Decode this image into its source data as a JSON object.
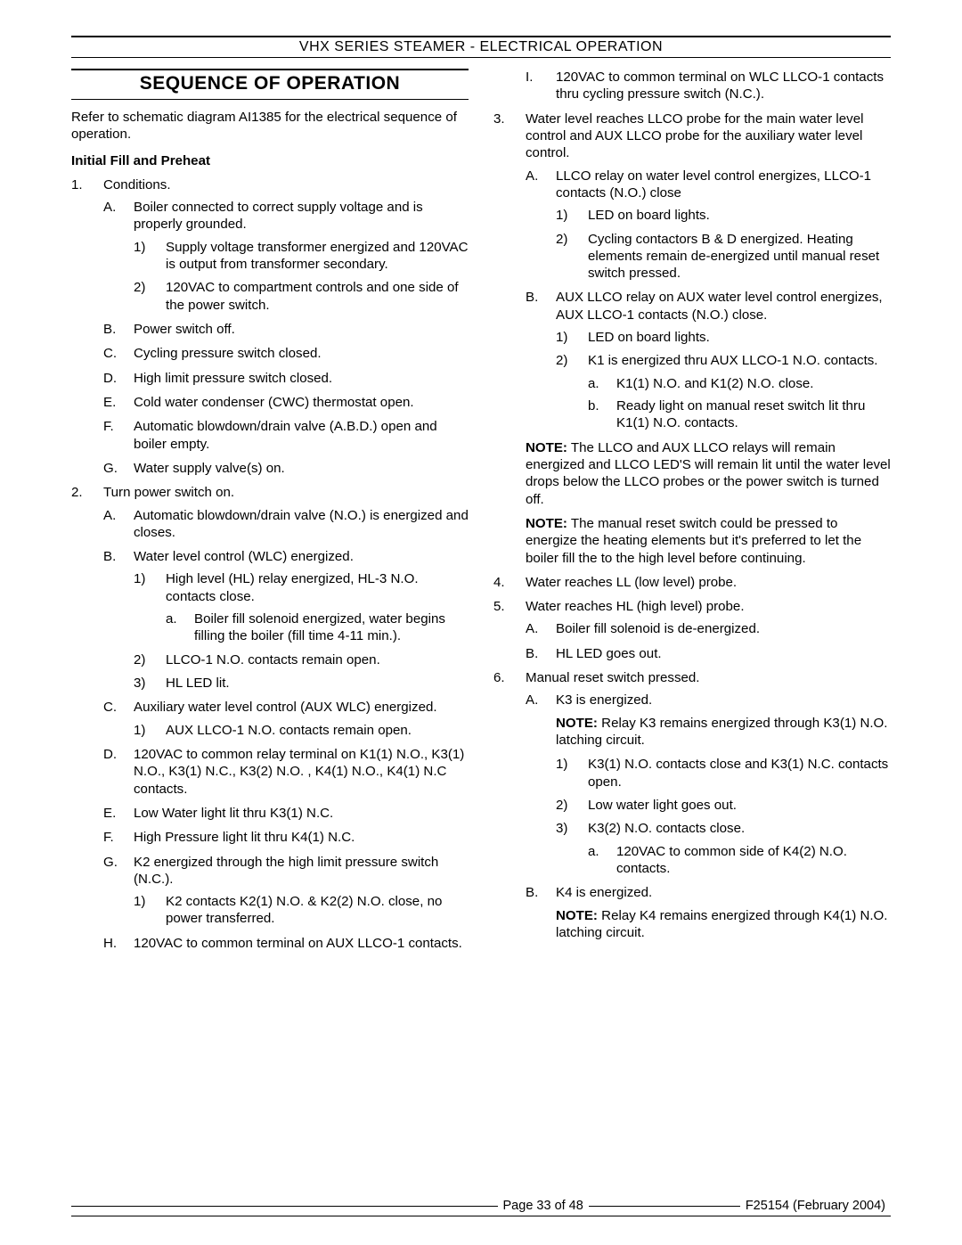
{
  "header": "VHX SERIES STEAMER - ELECTRICAL OPERATION",
  "section_title": "SEQUENCE OF OPERATION",
  "intro": "Refer to schematic diagram AI1385 for the electrical sequence of operation.",
  "subhead": "Initial Fill and Preheat",
  "steps": [
    {
      "n": "1.",
      "t": "Conditions.",
      "sub": [
        {
          "l": "A.",
          "t": "Boiler connected to correct supply voltage and is properly grounded.",
          "sub": [
            {
              "l": "1)",
              "t": "Supply voltage transformer energized and 120VAC is output from transformer secondary."
            },
            {
              "l": "2)",
              "t": "120VAC to compartment controls and one side of the power switch."
            }
          ]
        },
        {
          "l": "B.",
          "t": "Power switch off."
        },
        {
          "l": "C.",
          "t": "Cycling pressure switch closed."
        },
        {
          "l": "D.",
          "t": "High limit pressure switch closed."
        },
        {
          "l": "E.",
          "t": "Cold water condenser (CWC) thermostat open."
        },
        {
          "l": "F.",
          "t": "Automatic blowdown/drain valve (A.B.D.) open and boiler empty."
        },
        {
          "l": "G.",
          "t": "Water supply valve(s) on."
        }
      ]
    },
    {
      "n": "2.",
      "t": "Turn power switch on.",
      "sub": [
        {
          "l": "A.",
          "t": "Automatic blowdown/drain valve (N.O.) is energized and closes."
        },
        {
          "l": "B.",
          "t": "Water level control (WLC) energized.",
          "sub": [
            {
              "l": "1)",
              "t": "High level (HL) relay energized, HL-3 N.O. contacts close.",
              "sub": [
                {
                  "l": "a.",
                  "t": "Boiler fill solenoid energized, water begins filling the boiler (fill time 4-11 min.)."
                }
              ]
            },
            {
              "l": "2)",
              "t": "LLCO-1 N.O. contacts remain open."
            },
            {
              "l": "3)",
              "t": "HL LED lit."
            }
          ]
        },
        {
          "l": "C.",
          "t": "Auxiliary water level control (AUX WLC) energized.",
          "sub": [
            {
              "l": "1)",
              "t": "AUX LLCO-1 N.O. contacts remain open."
            }
          ]
        },
        {
          "l": "D.",
          "t": "120VAC to common relay terminal on K1(1) N.O., K3(1) N.O., K3(1) N.C., K3(2) N.O. , K4(1) N.O., K4(1) N.C contacts."
        },
        {
          "l": "E.",
          "t": "Low Water light lit thru K3(1) N.C."
        },
        {
          "l": "F.",
          "t": "High Pressure light lit thru K4(1) N.C."
        },
        {
          "l": "G.",
          "t": "K2 energized through the high limit pressure switch (N.C.).",
          "sub": [
            {
              "l": "1)",
              "t": "K2 contacts K2(1) N.O. & K2(2) N.O. close, no power transferred."
            }
          ]
        },
        {
          "l": "H.",
          "t": "120VAC to common terminal on AUX LLCO-1 contacts."
        },
        {
          "l": "I.",
          "t": "120VAC to common terminal on WLC LLCO-1 contacts thru cycling pressure switch (N.C.)."
        }
      ]
    },
    {
      "n": "3.",
      "t": "Water level reaches LLCO probe for the main water level control and AUX LLCO probe for the auxiliary water level control.",
      "sub": [
        {
          "l": "A.",
          "t": "LLCO relay on water level control energizes, LLCO-1 contacts (N.O.) close",
          "sub": [
            {
              "l": "1)",
              "t": "LED on board lights."
            },
            {
              "l": "2)",
              "t": "Cycling contactors B & D energized. Heating elements remain de-energized until manual reset switch pressed."
            }
          ]
        },
        {
          "l": "B.",
          "t": "AUX LLCO relay on AUX water level control energizes, AUX LLCO-1 contacts (N.O.) close.",
          "sub": [
            {
              "l": "1)",
              "t": "LED on board lights."
            },
            {
              "l": "2)",
              "t": "K1 is energized thru AUX LLCO-1 N.O. contacts.",
              "sub": [
                {
                  "l": "a.",
                  "t": "K1(1) N.O. and K1(2) N.O. close."
                },
                {
                  "l": "b.",
                  "t": "Ready light on manual reset switch lit thru K1(1) N.O. contacts."
                }
              ]
            }
          ]
        }
      ],
      "notes": [
        "The LLCO and AUX LLCO relays will remain energized and LLCO LED'S will remain lit until the water level drops below the LLCO probes or the power switch is turned off.",
        "The manual reset switch could be pressed to energize the heating elements but it's preferred to let the boiler fill the to the high level before continuing."
      ]
    },
    {
      "n": "4.",
      "t": "Water reaches LL (low level) probe."
    },
    {
      "n": "5.",
      "t": "Water reaches HL (high level) probe.",
      "sub": [
        {
          "l": "A.",
          "t": "Boiler fill solenoid is de-energized."
        },
        {
          "l": "B.",
          "t": "HL LED goes out."
        }
      ]
    },
    {
      "n": "6.",
      "t": "Manual reset switch pressed.",
      "sub": [
        {
          "l": "A.",
          "t": "K3 is energized.",
          "note": "Relay K3 remains energized through K3(1) N.O. latching circuit.",
          "sub": [
            {
              "l": "1)",
              "t": "K3(1) N.O. contacts close and K3(1) N.C. contacts open."
            },
            {
              "l": "2)",
              "t": "Low water light goes out."
            },
            {
              "l": "3)",
              "t": "K3(2) N.O. contacts close.",
              "sub": [
                {
                  "l": "a.",
                  "t": "120VAC to common side of K4(2) N.O. contacts."
                }
              ]
            }
          ]
        },
        {
          "l": "B.",
          "t": "K4 is energized.",
          "note": "Relay K4 remains energized through K4(1) N.O. latching circuit."
        }
      ]
    }
  ],
  "footer": {
    "page": "Page 33 of  48",
    "rev": "F25154 (February 2004)"
  },
  "note_label": "NOTE:"
}
